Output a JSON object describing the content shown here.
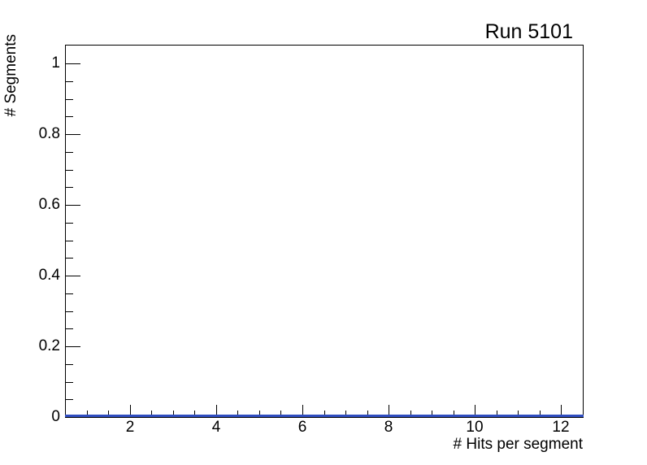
{
  "chart_data": {
    "type": "bar",
    "title": "Run 5101",
    "xlabel": "# Hits per segment",
    "ylabel": "# Segments",
    "xlim": [
      0.5,
      12.5
    ],
    "ylim": [
      0,
      1.053
    ],
    "grid": false,
    "legend": null,
    "x_ticks": {
      "values": [
        2,
        4,
        6,
        8,
        10,
        12
      ],
      "labels": [
        "2",
        "4",
        "6",
        "8",
        "10",
        "12"
      ],
      "minor_step": 0.5
    },
    "y_ticks": {
      "values": [
        0,
        0.2,
        0.4,
        0.6,
        0.8,
        1
      ],
      "labels": [
        "0",
        "0.2",
        "0.4",
        "0.6",
        "0.8",
        "1"
      ],
      "minor_step": 0.05
    },
    "series": [
      {
        "name": "histogram",
        "x": [
          1,
          2,
          3,
          4,
          5,
          6,
          7,
          8,
          9,
          10,
          11,
          12
        ],
        "values": [
          0,
          0,
          0,
          0,
          0,
          0,
          0,
          0,
          0,
          0,
          0,
          0
        ]
      }
    ],
    "annotations": [],
    "colors": {
      "histogram_line": "#2f4dc0",
      "axis": "#000000",
      "text": "#000000",
      "background": "#ffffff"
    }
  }
}
